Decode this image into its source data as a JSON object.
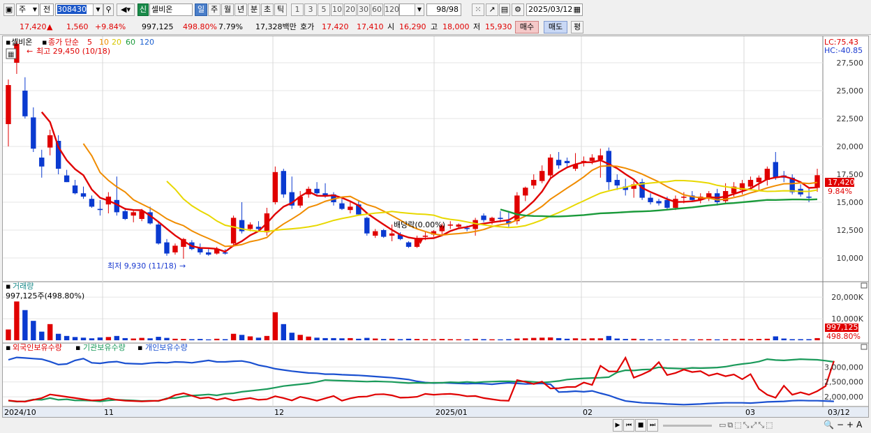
{
  "toolbar": {
    "period_select": "주",
    "scope_select": "전",
    "code": "308430",
    "new_badge": "신",
    "name": "셀비온",
    "periods": [
      "일",
      "주",
      "월",
      "년",
      "분",
      "초",
      "틱"
    ],
    "selected_period": "일",
    "intervals": [
      "1",
      "3",
      "5",
      "10",
      "20",
      "30",
      "60",
      "120"
    ],
    "count": "98/98",
    "date": "2025/03/12"
  },
  "quote": {
    "price": "17,420",
    "change_arrow": "▲",
    "change": "1,560",
    "change_pct": "+9.84%",
    "volume": "997,125",
    "volume_ratio": "498.80%",
    "turnover_pct": "7.79%",
    "amount": "17,328백만",
    "ask_label": "호가",
    "ask": "17,420",
    "bid": "17,410",
    "open_label": "시",
    "open": "16,290",
    "high_label": "고",
    "high": "18,000",
    "low_label": "저",
    "low": "15,930",
    "buy_label": "매수",
    "sell_label": "매도",
    "eval_label": "평"
  },
  "price_panel": {
    "name_label": "셀비온",
    "legend_prefix": "종가 단순",
    "ma_labels": [
      "5",
      "10",
      "20",
      "60",
      "120"
    ],
    "ma_colors": [
      "#e00000",
      "#f08c00",
      "#e8d800",
      "#1a9a3a",
      "#1a5fd0"
    ],
    "lc_label": "LC:75.43",
    "hc_label": "HC:-40.85",
    "high_note": "최고 29,450 (10/18)",
    "low_note": "최저 9,930 (11/18)",
    "dividend_note": "배당락(0.00%)",
    "last_price_tag": "17,420",
    "last_pct_tag": "9.84%"
  },
  "volume_panel": {
    "title": "거래량",
    "readout": "997,125주(498.80%)",
    "last_tag": "997,125",
    "last_pct_tag": "498.80%",
    "y_ticks": [
      "20,000K",
      "10,000K"
    ]
  },
  "holding_panel": {
    "legend": [
      "외국인보유수량",
      "기관보유수량",
      "개인보유수량"
    ],
    "colors": [
      "#e00000",
      "#1a9a5a",
      "#1a50d0"
    ],
    "y_ticks": [
      "3,000,000",
      "2,500,000",
      "2,000,000"
    ]
  },
  "x_axis": [
    "2024/10",
    "11",
    "12",
    "2025/01",
    "02",
    "03",
    "03/12"
  ],
  "chart_data": {
    "type": "candlestick",
    "ylim": [
      8000,
      29500
    ],
    "y_ticks": [
      10000,
      12500,
      15000,
      17500,
      20000,
      22500,
      25000,
      27500
    ],
    "candles": [
      {
        "o": 22000,
        "h": 26000,
        "l": 20000,
        "c": 25500
      },
      {
        "o": 27500,
        "h": 29450,
        "l": 26500,
        "c": 29200
      },
      {
        "o": 25000,
        "h": 26200,
        "l": 22500,
        "c": 22700
      },
      {
        "o": 22600,
        "h": 23500,
        "l": 19500,
        "c": 19800
      },
      {
        "o": 19000,
        "h": 19700,
        "l": 17200,
        "c": 18200
      },
      {
        "o": 19900,
        "h": 21500,
        "l": 19200,
        "c": 21000
      },
      {
        "o": 20500,
        "h": 21000,
        "l": 17500,
        "c": 18000
      },
      {
        "o": 17400,
        "h": 17900,
        "l": 16800,
        "c": 16800
      },
      {
        "o": 16500,
        "h": 17000,
        "l": 15700,
        "c": 15800
      },
      {
        "o": 15800,
        "h": 16400,
        "l": 15300,
        "c": 15500
      },
      {
        "o": 15300,
        "h": 15600,
        "l": 14500,
        "c": 14600
      },
      {
        "o": 14400,
        "h": 15200,
        "l": 13800,
        "c": 14300
      },
      {
        "o": 14800,
        "h": 15900,
        "l": 14000,
        "c": 15500
      },
      {
        "o": 15200,
        "h": 17300,
        "l": 13800,
        "c": 14100
      },
      {
        "o": 14200,
        "h": 14500,
        "l": 13400,
        "c": 13500
      },
      {
        "o": 13800,
        "h": 14300,
        "l": 13200,
        "c": 14100
      },
      {
        "o": 13500,
        "h": 14400,
        "l": 13300,
        "c": 14200
      },
      {
        "o": 14100,
        "h": 14600,
        "l": 13000,
        "c": 13100
      },
      {
        "o": 13000,
        "h": 13200,
        "l": 11200,
        "c": 11300
      },
      {
        "o": 11400,
        "h": 11700,
        "l": 10200,
        "c": 10400
      },
      {
        "o": 10500,
        "h": 11300,
        "l": 10300,
        "c": 11100
      },
      {
        "o": 11000,
        "h": 11800,
        "l": 9930,
        "c": 11700
      },
      {
        "o": 11400,
        "h": 11600,
        "l": 10700,
        "c": 10800
      },
      {
        "o": 10900,
        "h": 11300,
        "l": 10300,
        "c": 10500
      },
      {
        "o": 10500,
        "h": 10800,
        "l": 10200,
        "c": 10300
      },
      {
        "o": 10400,
        "h": 11000,
        "l": 10300,
        "c": 10800
      },
      {
        "o": 10500,
        "h": 10800,
        "l": 10300,
        "c": 10400
      },
      {
        "o": 11300,
        "h": 13800,
        "l": 11000,
        "c": 13600
      },
      {
        "o": 13400,
        "h": 15000,
        "l": 12200,
        "c": 12400
      },
      {
        "o": 12600,
        "h": 13200,
        "l": 12400,
        "c": 13000
      },
      {
        "o": 12800,
        "h": 13300,
        "l": 12500,
        "c": 12600
      },
      {
        "o": 12300,
        "h": 14500,
        "l": 12000,
        "c": 14000
      },
      {
        "o": 15000,
        "h": 18200,
        "l": 14800,
        "c": 17700
      },
      {
        "o": 17800,
        "h": 18000,
        "l": 15400,
        "c": 15700
      },
      {
        "o": 15900,
        "h": 17300,
        "l": 14400,
        "c": 14700
      },
      {
        "o": 14700,
        "h": 16000,
        "l": 14500,
        "c": 15500
      },
      {
        "o": 15700,
        "h": 16400,
        "l": 15400,
        "c": 16200
      },
      {
        "o": 16200,
        "h": 16800,
        "l": 15600,
        "c": 15800
      },
      {
        "o": 15800,
        "h": 16700,
        "l": 15400,
        "c": 15600
      },
      {
        "o": 15700,
        "h": 15900,
        "l": 14700,
        "c": 15000
      },
      {
        "o": 14900,
        "h": 15300,
        "l": 14300,
        "c": 14400
      },
      {
        "o": 14300,
        "h": 15000,
        "l": 14000,
        "c": 14600
      },
      {
        "o": 14800,
        "h": 15100,
        "l": 13800,
        "c": 13900
      },
      {
        "o": 13600,
        "h": 13700,
        "l": 12000,
        "c": 12200
      },
      {
        "o": 12000,
        "h": 12600,
        "l": 11800,
        "c": 12400
      },
      {
        "o": 12500,
        "h": 12600,
        "l": 11800,
        "c": 11900
      },
      {
        "o": 12000,
        "h": 13000,
        "l": 11500,
        "c": 12200
      },
      {
        "o": 12100,
        "h": 12300,
        "l": 11600,
        "c": 11700
      },
      {
        "o": 11400,
        "h": 11500,
        "l": 10900,
        "c": 11000
      },
      {
        "o": 11000,
        "h": 12000,
        "l": 10900,
        "c": 11800
      },
      {
        "o": 11900,
        "h": 12400,
        "l": 11600,
        "c": 12000
      },
      {
        "o": 12100,
        "h": 12500,
        "l": 11900,
        "c": 12400
      },
      {
        "o": 12400,
        "h": 13100,
        "l": 12100,
        "c": 12900
      },
      {
        "o": 12900,
        "h": 13300,
        "l": 12600,
        "c": 13000
      },
      {
        "o": 12800,
        "h": 13100,
        "l": 12600,
        "c": 13000
      },
      {
        "o": 12700,
        "h": 12900,
        "l": 12400,
        "c": 12600
      },
      {
        "o": 12600,
        "h": 13600,
        "l": 12000,
        "c": 13400
      },
      {
        "o": 13800,
        "h": 14000,
        "l": 13200,
        "c": 13400
      },
      {
        "o": 13300,
        "h": 13700,
        "l": 13000,
        "c": 13600
      },
      {
        "o": 13600,
        "h": 14200,
        "l": 13200,
        "c": 13500
      },
      {
        "o": 13300,
        "h": 14100,
        "l": 12700,
        "c": 13100
      },
      {
        "o": 13300,
        "h": 15900,
        "l": 13000,
        "c": 15600
      },
      {
        "o": 15600,
        "h": 16400,
        "l": 15100,
        "c": 16300
      },
      {
        "o": 16500,
        "h": 17500,
        "l": 16200,
        "c": 17000
      },
      {
        "o": 16900,
        "h": 18300,
        "l": 16700,
        "c": 17800
      },
      {
        "o": 17400,
        "h": 19300,
        "l": 17200,
        "c": 19000
      },
      {
        "o": 18800,
        "h": 19500,
        "l": 18000,
        "c": 18300
      },
      {
        "o": 18700,
        "h": 19000,
        "l": 18200,
        "c": 18500
      },
      {
        "o": 18000,
        "h": 19400,
        "l": 17800,
        "c": 18400
      },
      {
        "o": 18500,
        "h": 19100,
        "l": 18200,
        "c": 18700
      },
      {
        "o": 18700,
        "h": 19300,
        "l": 18400,
        "c": 19000
      },
      {
        "o": 18800,
        "h": 19800,
        "l": 17200,
        "c": 19200
      },
      {
        "o": 19600,
        "h": 19900,
        "l": 16100,
        "c": 16800
      },
      {
        "o": 17000,
        "h": 17500,
        "l": 16100,
        "c": 16500
      },
      {
        "o": 16400,
        "h": 17100,
        "l": 15600,
        "c": 16100
      },
      {
        "o": 16200,
        "h": 16900,
        "l": 15400,
        "c": 16600
      },
      {
        "o": 16800,
        "h": 17100,
        "l": 15200,
        "c": 15400
      },
      {
        "o": 15400,
        "h": 15800,
        "l": 14800,
        "c": 15000
      },
      {
        "o": 15100,
        "h": 15300,
        "l": 14700,
        "c": 14900
      },
      {
        "o": 15200,
        "h": 15500,
        "l": 14300,
        "c": 14500
      },
      {
        "o": 14500,
        "h": 15600,
        "l": 14300,
        "c": 15300
      },
      {
        "o": 15400,
        "h": 15900,
        "l": 14900,
        "c": 15500
      },
      {
        "o": 15600,
        "h": 16000,
        "l": 15100,
        "c": 15200
      },
      {
        "o": 15200,
        "h": 15800,
        "l": 14900,
        "c": 15500
      },
      {
        "o": 15300,
        "h": 16000,
        "l": 15100,
        "c": 15800
      },
      {
        "o": 15800,
        "h": 16200,
        "l": 14700,
        "c": 15000
      },
      {
        "o": 15100,
        "h": 16700,
        "l": 14900,
        "c": 16000
      },
      {
        "o": 15800,
        "h": 16800,
        "l": 15500,
        "c": 16400
      },
      {
        "o": 16100,
        "h": 17000,
        "l": 15700,
        "c": 16700
      },
      {
        "o": 16400,
        "h": 17300,
        "l": 16200,
        "c": 17000
      },
      {
        "o": 16800,
        "h": 17400,
        "l": 16000,
        "c": 17200
      },
      {
        "o": 17000,
        "h": 18200,
        "l": 16500,
        "c": 18000
      },
      {
        "o": 18600,
        "h": 19500,
        "l": 17000,
        "c": 17200
      },
      {
        "o": 17400,
        "h": 17800,
        "l": 16800,
        "c": 17200
      },
      {
        "o": 17200,
        "h": 17500,
        "l": 15700,
        "c": 15900
      },
      {
        "o": 16200,
        "h": 16600,
        "l": 15500,
        "c": 15700
      },
      {
        "o": 15500,
        "h": 16200,
        "l": 15000,
        "c": 15400
      },
      {
        "o": 16290,
        "h": 18000,
        "l": 15930,
        "c": 17420
      }
    ],
    "volume_k": [
      5000,
      18000,
      14000,
      9000,
      4000,
      7500,
      3000,
      2000,
      1500,
      1200,
      900,
      1300,
      1500,
      2000,
      1000,
      800,
      1100,
      900,
      1600,
      1100,
      700,
      600,
      500,
      600,
      400,
      700,
      500,
      3000,
      2500,
      1800,
      1200,
      2000,
      13000,
      7500,
      3500,
      2500,
      1700,
      1200,
      1000,
      1000,
      900,
      1000,
      700,
      1100,
      800,
      600,
      700,
      500,
      700,
      600,
      500,
      450,
      600,
      500,
      450,
      400,
      700,
      500,
      450,
      400,
      500,
      800,
      900,
      1100,
      1200,
      1300,
      1000,
      700,
      900,
      700,
      900,
      900,
      2000,
      800,
      600,
      700,
      500,
      450,
      400,
      400,
      500,
      450,
      400,
      450,
      500,
      400,
      500,
      500,
      700,
      500,
      600,
      700,
      1800,
      800,
      500,
      500,
      500,
      997
    ],
    "foreign_hold": [
      1880000,
      1850000,
      1840000,
      1900000,
      1960000,
      2080000,
      2040000,
      2000000,
      1960000,
      1920000,
      1880000,
      1890000,
      1950000,
      1900000,
      1870000,
      1860000,
      1850000,
      1860000,
      1870000,
      1930000,
      2060000,
      2120000,
      2040000,
      1950000,
      1980000,
      1900000,
      1960000,
      1880000,
      1920000,
      1960000,
      1900000,
      1920000,
      2020000,
      1960000,
      1880000,
      2000000,
      1940000,
      1870000,
      1950000,
      2030000,
      1870000,
      1950000,
      2000000,
      2010000,
      2080000,
      2090000,
      2050000,
      1970000,
      1980000,
      2000000,
      2100000,
      2070000,
      2090000,
      2100000,
      2070000,
      2020000,
      2030000,
      1960000,
      1920000,
      1880000,
      1870000,
      2560000,
      2500000,
      2430000,
      2510000,
      2280000,
      2290000,
      2330000,
      2330000,
      2480000,
      2400000,
      3040000,
      2850000,
      2850000,
      3310000,
      2640000,
      2750000,
      2880000,
      3160000,
      2730000,
      2800000,
      2910000,
      2830000,
      2860000,
      2710000,
      2780000,
      2690000,
      2750000,
      2590000,
      2760000,
      2270000,
      2070000,
      1970000,
      2370000,
      2070000,
      2150000,
      2070000,
      2190000,
      2360000,
      3200000
    ],
    "inst_hold": [
      1870000,
      1840000,
      1850000,
      1910000,
      1900000,
      1960000,
      1900000,
      1920000,
      1880000,
      1880000,
      1870000,
      1850000,
      1880000,
      1900000,
      1890000,
      1880000,
      1860000,
      1870000,
      1860000,
      1950000,
      1960000,
      2010000,
      2040000,
      2060000,
      2080000,
      2050000,
      2100000,
      2120000,
      2170000,
      2200000,
      2230000,
      2260000,
      2310000,
      2360000,
      2390000,
      2420000,
      2450000,
      2500000,
      2560000,
      2550000,
      2540000,
      2530000,
      2520000,
      2510000,
      2520000,
      2510000,
      2500000,
      2480000,
      2460000,
      2470000,
      2460000,
      2470000,
      2470000,
      2490000,
      2480000,
      2500000,
      2480000,
      2500000,
      2510000,
      2520000,
      2520000,
      2510000,
      2520000,
      2500000,
      2480000,
      2500000,
      2530000,
      2580000,
      2600000,
      2620000,
      2630000,
      2640000,
      2660000,
      2820000,
      2890000,
      2880000,
      2910000,
      2920000,
      2990000,
      2960000,
      2950000,
      2940000,
      2970000,
      2960000,
      2970000,
      2980000,
      3010000,
      3060000,
      3100000,
      3130000,
      3180000,
      3260000,
      3230000,
      3220000,
      3240000,
      3260000,
      3250000,
      3240000,
      3210000,
      3170000
    ],
    "retail_hold": [
      3240000,
      3320000,
      3300000,
      3280000,
      3260000,
      3180000,
      3080000,
      3100000,
      3220000,
      3280000,
      3140000,
      3120000,
      3160000,
      3180000,
      3120000,
      3110000,
      3100000,
      3130000,
      3150000,
      3140000,
      3170000,
      3160000,
      3140000,
      3180000,
      3220000,
      3170000,
      3170000,
      3190000,
      3200000,
      3150000,
      3060000,
      3010000,
      2940000,
      2900000,
      2860000,
      2830000,
      2800000,
      2790000,
      2760000,
      2760000,
      2740000,
      2730000,
      2720000,
      2700000,
      2680000,
      2660000,
      2640000,
      2610000,
      2580000,
      2520000,
      2480000,
      2460000,
      2470000,
      2460000,
      2450000,
      2440000,
      2450000,
      2440000,
      2420000,
      2450000,
      2470000,
      2450000,
      2430000,
      2440000,
      2450000,
      2420000,
      2160000,
      2170000,
      2190000,
      2170000,
      2200000,
      2120000,
      2050000,
      1950000,
      1860000,
      1830000,
      1800000,
      1790000,
      1780000,
      1760000,
      1750000,
      1740000,
      1750000,
      1760000,
      1780000,
      1790000,
      1800000,
      1800000,
      1800000,
      1790000,
      1810000,
      1830000,
      1840000,
      1850000,
      1870000,
      1880000,
      1870000,
      1870000,
      1860000,
      1850000
    ],
    "moving_averages": [
      5,
      10,
      20,
      60,
      120
    ]
  },
  "status": {
    "buttons": [
      "▶",
      "⏮",
      "■",
      "⏭"
    ],
    "zoom_icons": [
      "🔍",
      "−",
      "+",
      "A"
    ]
  }
}
